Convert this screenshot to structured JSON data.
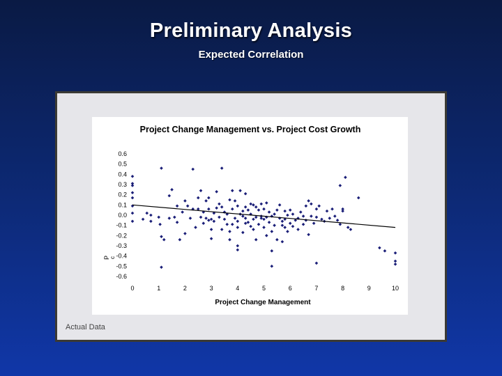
{
  "slide": {
    "title": "Preliminary Analysis",
    "subtitle": "Expected Correlation",
    "caption": "Actual Data"
  },
  "colors": {
    "points": "#1b1f78",
    "trend": "#000000",
    "background": "#0d2a78"
  },
  "chart_data": {
    "type": "scatter",
    "title": "Project Change Management vs. Project Cost Growth",
    "xlabel": "Project Change Management",
    "ylabel": "P",
    "ylabel_sub": "c",
    "xlim": [
      0,
      10
    ],
    "ylim": [
      -0.6,
      0.6
    ],
    "x_ticks": [
      "0",
      "1",
      "2",
      "3",
      "4",
      "5",
      "6",
      "7",
      "8",
      "9",
      "10"
    ],
    "y_ticks": [
      "0.6",
      "0.5",
      "0.4",
      "0.3",
      "0.2",
      "0.1",
      "0.0",
      "-0.1",
      "-0.2",
      "-0.3",
      "-0.4",
      "-0.5",
      "-0.6"
    ],
    "grid": false,
    "trendline": {
      "x": [
        0,
        10
      ],
      "y": [
        0.1,
        -0.12
      ]
    },
    "series": [
      {
        "points": [
          [
            0,
            0.38
          ],
          [
            0,
            0.31
          ],
          [
            0,
            0.29
          ],
          [
            0,
            0.22
          ],
          [
            0,
            0.17
          ],
          [
            0,
            0.09
          ],
          [
            0,
            0.02
          ],
          [
            0,
            -0.06
          ],
          [
            0.4,
            -0.04
          ],
          [
            0.55,
            0.02
          ],
          [
            0.7,
            0.0
          ],
          [
            0.7,
            -0.06
          ],
          [
            1.0,
            -0.02
          ],
          [
            1.05,
            -0.09
          ],
          [
            1.1,
            0.46
          ],
          [
            1.1,
            -0.21
          ],
          [
            1.2,
            -0.24
          ],
          [
            1.1,
            -0.51
          ],
          [
            1.4,
            0.19
          ],
          [
            1.4,
            -0.03
          ],
          [
            1.5,
            0.25
          ],
          [
            1.6,
            -0.02
          ],
          [
            1.7,
            0.09
          ],
          [
            1.7,
            -0.07
          ],
          [
            1.8,
            -0.24
          ],
          [
            1.9,
            0.03
          ],
          [
            2.0,
            -0.18
          ],
          [
            2.0,
            0.14
          ],
          [
            2.1,
            0.09
          ],
          [
            2.2,
            -0.03
          ],
          [
            2.3,
            0.06
          ],
          [
            2.3,
            0.45
          ],
          [
            2.4,
            -0.12
          ],
          [
            2.5,
            0.17
          ],
          [
            2.5,
            0.06
          ],
          [
            2.6,
            -0.02
          ],
          [
            2.6,
            0.24
          ],
          [
            2.7,
            -0.08
          ],
          [
            2.7,
            0.03
          ],
          [
            2.8,
            0.14
          ],
          [
            2.8,
            -0.03
          ],
          [
            2.9,
            0.06
          ],
          [
            2.9,
            -0.05
          ],
          [
            2.9,
            0.17
          ],
          [
            3.0,
            -0.04
          ],
          [
            3.0,
            -0.14
          ],
          [
            3.0,
            -0.23
          ],
          [
            3.1,
            0.02
          ],
          [
            3.1,
            -0.06
          ],
          [
            3.2,
            0.23
          ],
          [
            3.2,
            0.07
          ],
          [
            3.3,
            -0.02
          ],
          [
            3.3,
            0.11
          ],
          [
            3.4,
            0.08
          ],
          [
            3.4,
            -0.14
          ],
          [
            3.4,
            0.46
          ],
          [
            3.5,
            0.03
          ],
          [
            3.5,
            -0.04
          ],
          [
            3.6,
            -0.09
          ],
          [
            3.6,
            0.01
          ],
          [
            3.7,
            -0.16
          ],
          [
            3.7,
            0.15
          ],
          [
            3.7,
            -0.24
          ],
          [
            3.8,
            0.24
          ],
          [
            3.8,
            0.06
          ],
          [
            3.8,
            -0.09
          ],
          [
            3.9,
            -0.03
          ],
          [
            3.9,
            0.14
          ],
          [
            4.0,
            0.09
          ],
          [
            4.0,
            -0.06
          ],
          [
            4.0,
            -0.12
          ],
          [
            4.0,
            -0.3
          ],
          [
            4.0,
            -0.34
          ],
          [
            4.1,
            0.01
          ],
          [
            4.1,
            0.24
          ],
          [
            4.2,
            0.04
          ],
          [
            4.2,
            -0.01
          ],
          [
            4.2,
            -0.17
          ],
          [
            4.3,
            -0.08
          ],
          [
            4.3,
            0.08
          ],
          [
            4.3,
            -0.03
          ],
          [
            4.3,
            0.21
          ],
          [
            4.4,
            0.05
          ],
          [
            4.4,
            -0.07
          ],
          [
            4.5,
            0.11
          ],
          [
            4.5,
            -0.11
          ],
          [
            4.5,
            0.01
          ],
          [
            4.6,
            -0.04
          ],
          [
            4.6,
            0.1
          ],
          [
            4.6,
            -0.14
          ],
          [
            4.7,
            0.08
          ],
          [
            4.7,
            -0.02
          ],
          [
            4.7,
            -0.24
          ],
          [
            4.8,
            -0.09
          ],
          [
            4.8,
            0.05
          ],
          [
            4.9,
            -0.01
          ],
          [
            4.9,
            0.11
          ],
          [
            4.9,
            -0.03
          ],
          [
            5.0,
            -0.04
          ],
          [
            5.0,
            0.06
          ],
          [
            5.0,
            -0.12
          ],
          [
            5.1,
            -0.02
          ],
          [
            5.1,
            0.12
          ],
          [
            5.1,
            -0.2
          ],
          [
            5.2,
            -0.07
          ],
          [
            5.2,
            0.03
          ],
          [
            5.3,
            -0.01
          ],
          [
            5.3,
            -0.16
          ],
          [
            5.3,
            -0.35
          ],
          [
            5.3,
            -0.5
          ],
          [
            5.4,
            0.01
          ],
          [
            5.4,
            -0.1
          ],
          [
            5.5,
            -0.24
          ],
          [
            5.5,
            0.05
          ],
          [
            5.6,
            -0.03
          ],
          [
            5.6,
            0.1
          ],
          [
            5.7,
            -0.1
          ],
          [
            5.7,
            -0.06
          ],
          [
            5.7,
            -0.26
          ],
          [
            5.8,
            -0.12
          ],
          [
            5.8,
            0.04
          ],
          [
            5.8,
            -0.04
          ],
          [
            5.9,
            0.0
          ],
          [
            5.9,
            -0.16
          ],
          [
            6.0,
            -0.08
          ],
          [
            6.0,
            0.05
          ],
          [
            6.1,
            -0.11
          ],
          [
            6.1,
            0.01
          ],
          [
            6.2,
            -0.05
          ],
          [
            6.3,
            -0.03
          ],
          [
            6.3,
            -0.14
          ],
          [
            6.4,
            0.03
          ],
          [
            6.5,
            -0.01
          ],
          [
            6.5,
            -0.09
          ],
          [
            6.6,
            0.09
          ],
          [
            6.6,
            -0.05
          ],
          [
            6.7,
            0.14
          ],
          [
            6.7,
            -0.19
          ],
          [
            6.8,
            -0.01
          ],
          [
            6.8,
            0.11
          ],
          [
            6.9,
            -0.08
          ],
          [
            7.0,
            0.06
          ],
          [
            7.0,
            -0.02
          ],
          [
            7.0,
            -0.47
          ],
          [
            7.1,
            0.09
          ],
          [
            7.2,
            -0.04
          ],
          [
            7.3,
            -0.06
          ],
          [
            7.4,
            0.04
          ],
          [
            7.5,
            -0.03
          ],
          [
            7.6,
            0.06
          ],
          [
            7.7,
            -0.01
          ],
          [
            7.8,
            -0.05
          ],
          [
            7.9,
            0.29
          ],
          [
            7.9,
            -0.09
          ],
          [
            8.0,
            0.04
          ],
          [
            8.0,
            0.06
          ],
          [
            8.1,
            0.37
          ],
          [
            8.2,
            -0.12
          ],
          [
            8.3,
            -0.14
          ],
          [
            8.6,
            0.17
          ],
          [
            9.4,
            -0.32
          ],
          [
            9.6,
            -0.35
          ],
          [
            10.0,
            -0.37
          ],
          [
            10.0,
            -0.45
          ],
          [
            10.0,
            -0.48
          ]
        ]
      }
    ]
  }
}
